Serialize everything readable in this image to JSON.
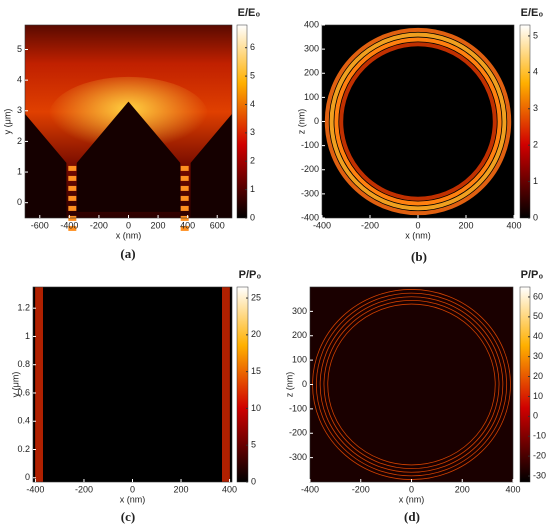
{
  "chart_data": [
    {
      "type": "heatmap",
      "panel_label": "(a)",
      "colorbar_title": "E/E₀",
      "xlabel": "x (nm)",
      "ylabel": "y (μm)",
      "xlim": [
        -700,
        700
      ],
      "xticks": [
        -600,
        -400,
        -200,
        0,
        200,
        400,
        600
      ],
      "ylim": [
        -0.5,
        5.8
      ],
      "yticks": [
        0,
        1,
        2,
        3,
        4,
        5
      ],
      "clim": [
        0,
        6.8
      ],
      "cticks": [
        0,
        1,
        2,
        3,
        4,
        5,
        6
      ]
    },
    {
      "type": "heatmap",
      "panel_label": "(b)",
      "colorbar_title": "E/E₀",
      "xlabel": "x (nm)",
      "ylabel": "z (nm)",
      "xlim": [
        -400,
        400
      ],
      "xticks": [
        -400,
        -200,
        0,
        200,
        400
      ],
      "ylim": [
        -400,
        400
      ],
      "yticks": [
        -400,
        -300,
        -200,
        -100,
        0,
        100,
        200,
        300,
        400
      ],
      "clim": [
        0,
        5.3
      ],
      "cticks": [
        0,
        1,
        2,
        3,
        4,
        5
      ]
    },
    {
      "type": "heatmap",
      "panel_label": "(c)",
      "colorbar_title": "P/P₀",
      "xlabel": "x (nm)",
      "ylabel": "y (μm)",
      "xlim": [
        -410,
        410
      ],
      "xticks": [
        -400,
        -200,
        0,
        200,
        400
      ],
      "ylim": [
        -0.03,
        1.35
      ],
      "yticks": [
        0,
        0.2,
        0.4,
        0.6,
        0.8,
        1,
        1.2
      ],
      "clim": [
        0,
        26.5
      ],
      "cticks": [
        0,
        5,
        10,
        15,
        20,
        25
      ]
    },
    {
      "type": "heatmap",
      "panel_label": "(d)",
      "colorbar_title": "P/P₀",
      "xlabel": "x (nm)",
      "ylabel": "z (nm)",
      "xlim": [
        -400,
        400
      ],
      "xticks": [
        -400,
        -200,
        0,
        200,
        400
      ],
      "ylim": [
        -400,
        400
      ],
      "yticks": [
        -300,
        -200,
        -100,
        0,
        100,
        200,
        300
      ],
      "clim": [
        -33,
        65
      ],
      "cticks": [
        -30,
        -20,
        -10,
        0,
        10,
        20,
        30,
        40,
        50,
        60
      ]
    }
  ]
}
